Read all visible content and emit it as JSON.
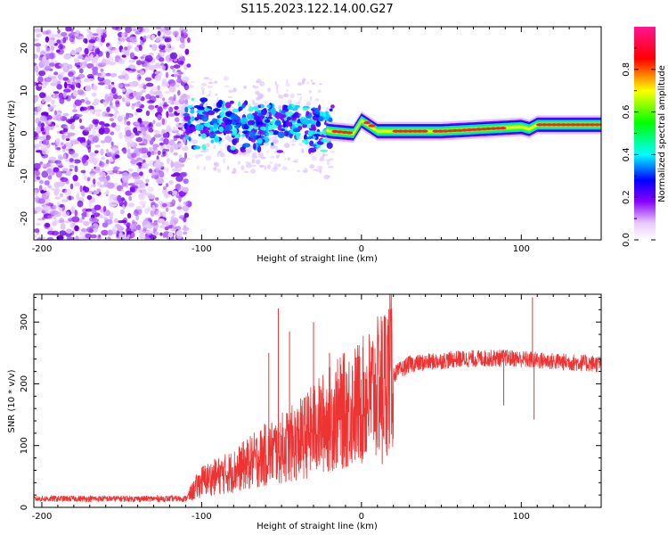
{
  "figure": {
    "title": "S115.2023.122.14.00.G27"
  },
  "chart_data": [
    {
      "type": "heatmap",
      "title": "",
      "xlabel": "Height of straight line (km)",
      "ylabel": "Frequency (Hz)",
      "xlim": [
        -205,
        150
      ],
      "ylim": [
        -25,
        25
      ],
      "xticks": [
        -200,
        -100,
        0,
        100
      ],
      "yticks": [
        -20,
        -10,
        0,
        10,
        20
      ],
      "grid": false,
      "colorbar": {
        "label": "Normalized spectral amplitude",
        "range": [
          0,
          1
        ],
        "ticks": [
          0.0,
          0.2,
          0.4,
          0.6,
          0.8
        ],
        "colormap": [
          "#ffffff",
          "#e8c8ff",
          "#8a00ff",
          "#0000ff",
          "#00ffff",
          "#00ff00",
          "#ffff00",
          "#ff0000",
          "#ff1493"
        ]
      },
      "features": {
        "noise_region_x": [
          -205,
          -108
        ],
        "signal_band": [
          {
            "x": -110,
            "f": 2.5
          },
          {
            "x": -90,
            "f": 2.0
          },
          {
            "x": -70,
            "f": 1.5
          },
          {
            "x": -50,
            "f": 2.5
          },
          {
            "x": -30,
            "f": 1.5
          },
          {
            "x": -20,
            "f": 0.5
          },
          {
            "x": -5,
            "f": 0.0
          },
          {
            "x": 0,
            "f": 3.0
          },
          {
            "x": 10,
            "f": 0.5
          },
          {
            "x": 50,
            "f": 0.5
          },
          {
            "x": 100,
            "f": 1.5
          },
          {
            "x": 105,
            "f": 1.0
          },
          {
            "x": 110,
            "f": 2.0
          },
          {
            "x": 150,
            "f": 2.0
          }
        ]
      }
    },
    {
      "type": "line",
      "title": "",
      "xlabel": "Height of straight line (km)",
      "ylabel": "SNR (10 * v/v)",
      "xlim": [
        -205,
        150
      ],
      "ylim": [
        0,
        345
      ],
      "xticks": [
        -200,
        -100,
        0,
        100
      ],
      "yticks": [
        0,
        100,
        200,
        300
      ],
      "grid": false,
      "color": "#ee3333",
      "envelope": [
        {
          "x": -205,
          "y": 12
        },
        {
          "x": -110,
          "y": 12
        },
        {
          "x": -100,
          "y": 40
        },
        {
          "x": -80,
          "y": 55
        },
        {
          "x": -60,
          "y": 80
        },
        {
          "x": -40,
          "y": 100
        },
        {
          "x": -20,
          "y": 135
        },
        {
          "x": 0,
          "y": 160
        },
        {
          "x": 10,
          "y": 180
        },
        {
          "x": 20,
          "y": 215
        },
        {
          "x": 30,
          "y": 232
        },
        {
          "x": 60,
          "y": 240
        },
        {
          "x": 90,
          "y": 242
        },
        {
          "x": 110,
          "y": 238
        },
        {
          "x": 150,
          "y": 232
        }
      ],
      "spikes": [
        {
          "x": -52,
          "y": 322
        },
        {
          "x": -30,
          "y": 300
        },
        {
          "x": -58,
          "y": 250
        },
        {
          "x": -45,
          "y": 285
        },
        {
          "x": -20,
          "y": 250
        },
        {
          "x": 89,
          "y": 165
        },
        {
          "x": 107,
          "y": 340
        },
        {
          "x": 108,
          "y": 142
        },
        {
          "x": 13,
          "y": 70
        }
      ]
    }
  ]
}
